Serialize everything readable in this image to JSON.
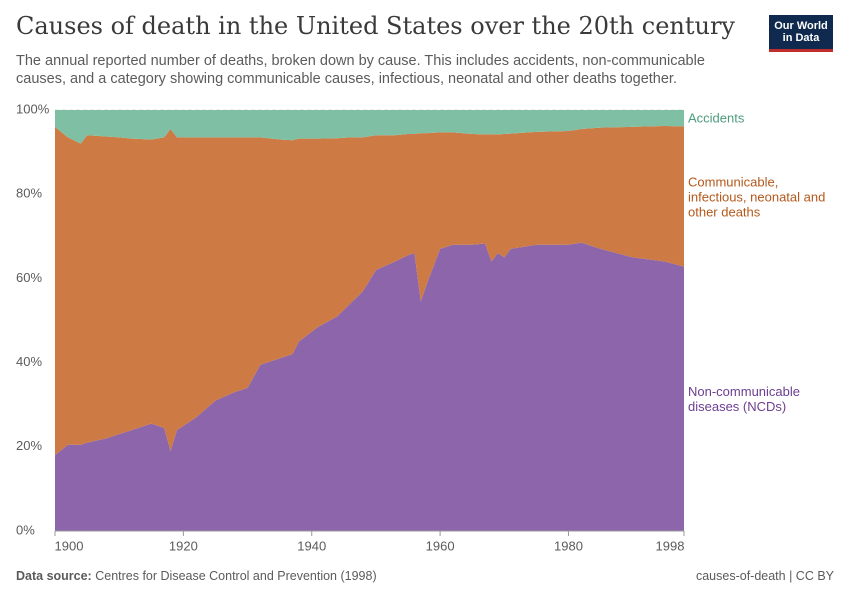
{
  "chart_data": {
    "type": "stacked-area",
    "title": "Causes of death in the United States over the 20th century",
    "subtitle": "The annual reported number of deaths, broken down by cause. This includes accidents, non-communicable causes, and a category showing communicable causes, infectious, neonatal and other deaths together.",
    "source_label": "Data source:",
    "source": "Centres for Disease Control and Prevention (1998)",
    "footer_right": "causes-of-death | CC BY",
    "logo": "Our World in Data",
    "x": [
      1900,
      1902,
      1904,
      1905,
      1908,
      1910,
      1912,
      1915,
      1917,
      1918,
      1919,
      1922,
      1925,
      1928,
      1930,
      1932,
      1935,
      1937,
      1938,
      1941,
      1944,
      1946,
      1948,
      1950,
      1953,
      1955,
      1956,
      1957,
      1958,
      1960,
      1962,
      1965,
      1967,
      1968,
      1969,
      1970,
      1971,
      1975,
      1980,
      1982,
      1985,
      1990,
      1995,
      1998
    ],
    "series": [
      {
        "name": "Non-communicable diseases (NCDs)",
        "color": "#8c65aa",
        "label_color": "#6d3e91",
        "values": [
          18,
          20.5,
          20.5,
          21,
          22,
          23,
          24,
          25.5,
          24.5,
          19,
          24,
          27,
          31,
          33,
          34,
          39.5,
          41,
          42,
          45,
          48.5,
          51,
          54,
          57,
          62,
          64,
          65.5,
          66,
          54.5,
          59,
          67,
          68,
          68,
          68.3,
          64,
          66,
          65,
          67,
          68,
          68,
          68.5,
          67,
          65,
          64,
          62.8
        ]
      },
      {
        "name": "Communicable, infectious, neonatal and other deaths",
        "color": "#cd7a44",
        "label_color": "#b4581b",
        "values": [
          78,
          73,
          71.5,
          73,
          71.7,
          70.5,
          69.2,
          67.5,
          69,
          76.5,
          69.5,
          66.5,
          62.5,
          60.5,
          59.5,
          54,
          52,
          50.8,
          48.2,
          44.7,
          42.3,
          39.5,
          36.5,
          32,
          30,
          28.8,
          28.3,
          40,
          35.5,
          27.7,
          26.7,
          26.3,
          25.9,
          30.2,
          28.2,
          29.3,
          27.4,
          26.8,
          27,
          27,
          28.8,
          31,
          32.2,
          33.3
        ]
      },
      {
        "name": "Accidents",
        "color": "#7fc0a5",
        "label_color": "#4c9c7c",
        "values": [
          4,
          6.5,
          8,
          6,
          6.3,
          6.5,
          6.8,
          7,
          6.5,
          4.5,
          6.5,
          6.5,
          6.5,
          6.5,
          6.5,
          6.5,
          7,
          7.2,
          6.8,
          6.8,
          6.7,
          6.5,
          6.5,
          6,
          6,
          5.7,
          5.7,
          5.5,
          5.5,
          5.3,
          5.3,
          5.7,
          5.8,
          5.8,
          5.8,
          5.7,
          5.6,
          5.2,
          5,
          4.5,
          4.2,
          4,
          3.8,
          3.9
        ]
      }
    ],
    "xlim": [
      1900,
      1998
    ],
    "xticks": [
      1900,
      1920,
      1940,
      1960,
      1980,
      1998
    ],
    "ylim": [
      0,
      100
    ],
    "yticks": [
      {
        "value": 0,
        "label": "0%"
      },
      {
        "value": 20,
        "label": "20%"
      },
      {
        "value": 40,
        "label": "40%"
      },
      {
        "value": 60,
        "label": "60%"
      },
      {
        "value": 80,
        "label": "80%"
      },
      {
        "value": 100,
        "label": "100%"
      }
    ],
    "grid": true
  }
}
